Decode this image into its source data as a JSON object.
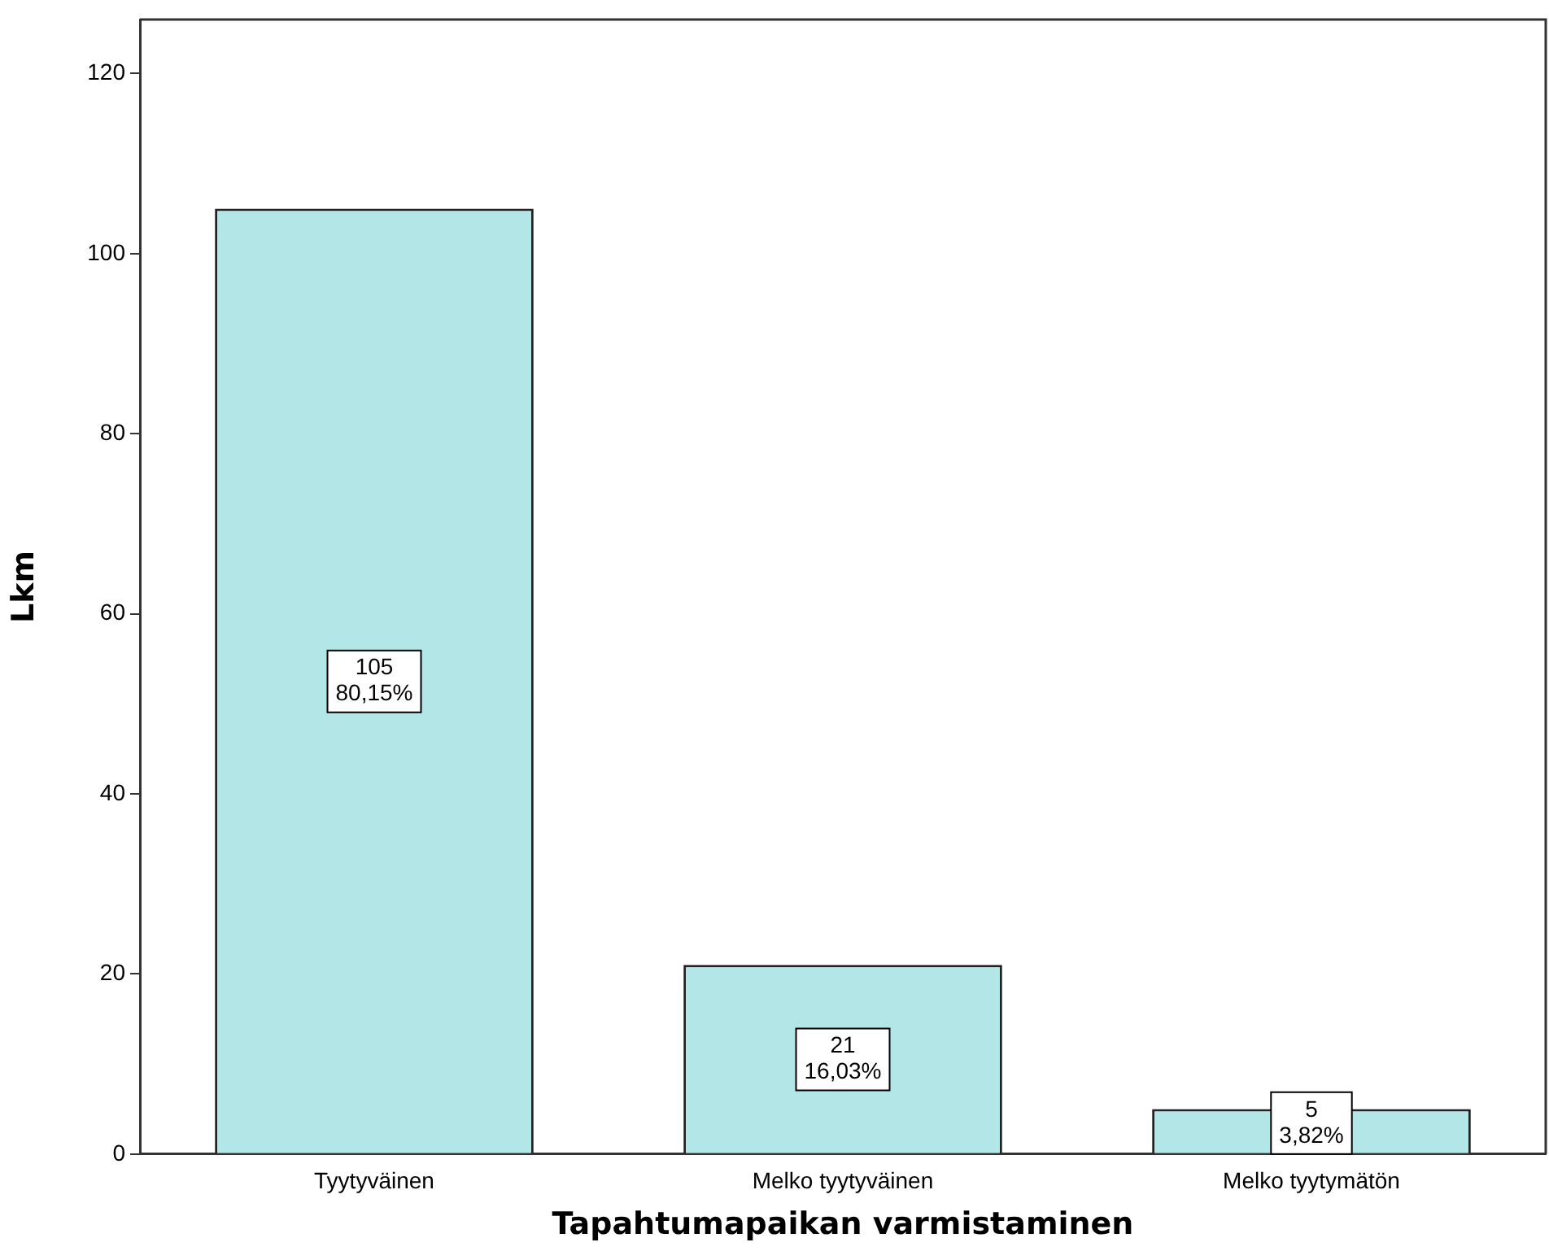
{
  "chart_data": {
    "type": "bar",
    "xlabel": "Tapahtumapaikan varmistaminen",
    "ylabel": "Lkm",
    "categories": [
      "Tyytyväinen",
      "Melko tyytyväinen",
      "Melko tyytymätön"
    ],
    "values": [
      105,
      21,
      5
    ],
    "value_labels": [
      "105\n80,15%",
      "21\n16,03%",
      "5\n3,82%"
    ],
    "color": "#b3e6e6",
    "ylim": [
      0,
      126
    ],
    "yticks": [
      0,
      20,
      40,
      60,
      80,
      100,
      120
    ],
    "grid": false,
    "legend": false
  }
}
